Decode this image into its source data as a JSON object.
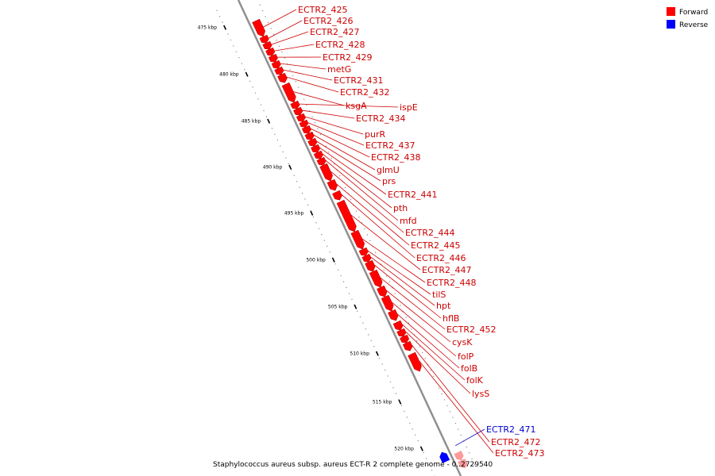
{
  "legend": {
    "items": [
      {
        "label": "Forward",
        "color": "#ff0000"
      },
      {
        "label": "Reverse",
        "color": "#0000ff"
      }
    ]
  },
  "scale": {
    "ticks": [
      "475 kbp",
      "480 kbp",
      "485 kbp",
      "490 kbp",
      "495 kbp",
      "500 kbp",
      "505 kbp",
      "510 kbp",
      "515 kbp",
      "520 kbp"
    ]
  },
  "genes": [
    {
      "name": "ECTR2_425",
      "strand": "forward"
    },
    {
      "name": "ECTR2_426",
      "strand": "forward"
    },
    {
      "name": "ECTR2_427",
      "strand": "forward"
    },
    {
      "name": "ECTR2_428",
      "strand": "forward"
    },
    {
      "name": "ECTR2_429",
      "strand": "forward"
    },
    {
      "name": "metG",
      "strand": "forward"
    },
    {
      "name": "ECTR2_431",
      "strand": "forward"
    },
    {
      "name": "ECTR2_432",
      "strand": "forward"
    },
    {
      "name": "ksgA",
      "strand": "forward"
    },
    {
      "name": "ispE",
      "strand": "forward"
    },
    {
      "name": "ECTR2_434",
      "strand": "forward"
    },
    {
      "name": "purR",
      "strand": "forward"
    },
    {
      "name": "ECTR2_437",
      "strand": "forward"
    },
    {
      "name": "ECTR2_438",
      "strand": "forward"
    },
    {
      "name": "glmU",
      "strand": "forward"
    },
    {
      "name": "prs",
      "strand": "forward"
    },
    {
      "name": "ECTR2_441",
      "strand": "forward"
    },
    {
      "name": "pth",
      "strand": "forward"
    },
    {
      "name": "mfd",
      "strand": "forward"
    },
    {
      "name": "ECTR2_444",
      "strand": "forward"
    },
    {
      "name": "ECTR2_445",
      "strand": "forward"
    },
    {
      "name": "ECTR2_446",
      "strand": "forward"
    },
    {
      "name": "ECTR2_447",
      "strand": "forward"
    },
    {
      "name": "ECTR2_448",
      "strand": "forward"
    },
    {
      "name": "tilS",
      "strand": "forward"
    },
    {
      "name": "hpt",
      "strand": "forward"
    },
    {
      "name": "hflB",
      "strand": "forward"
    },
    {
      "name": "ECTR2_452",
      "strand": "forward"
    },
    {
      "name": "cysK",
      "strand": "forward"
    },
    {
      "name": "folP",
      "strand": "forward"
    },
    {
      "name": "folB",
      "strand": "forward"
    },
    {
      "name": "folK",
      "strand": "forward"
    },
    {
      "name": "lysS",
      "strand": "forward"
    },
    {
      "name": "ECTR2_471",
      "strand": "reverse"
    },
    {
      "name": "ECTR2_472",
      "strand": "forward"
    },
    {
      "name": "ECTR2_473",
      "strand": "forward"
    }
  ],
  "colors": {
    "forward": "#ff0000",
    "forward_faded": "#ff9a9a",
    "reverse": "#0000ff",
    "backbone": "#909090",
    "forward_label": "#cc0000",
    "reverse_label": "#0000cc"
  },
  "caption": "Staphylococcus aureus subsp. aureus ECT-R 2 complete genome - 0..2729540"
}
